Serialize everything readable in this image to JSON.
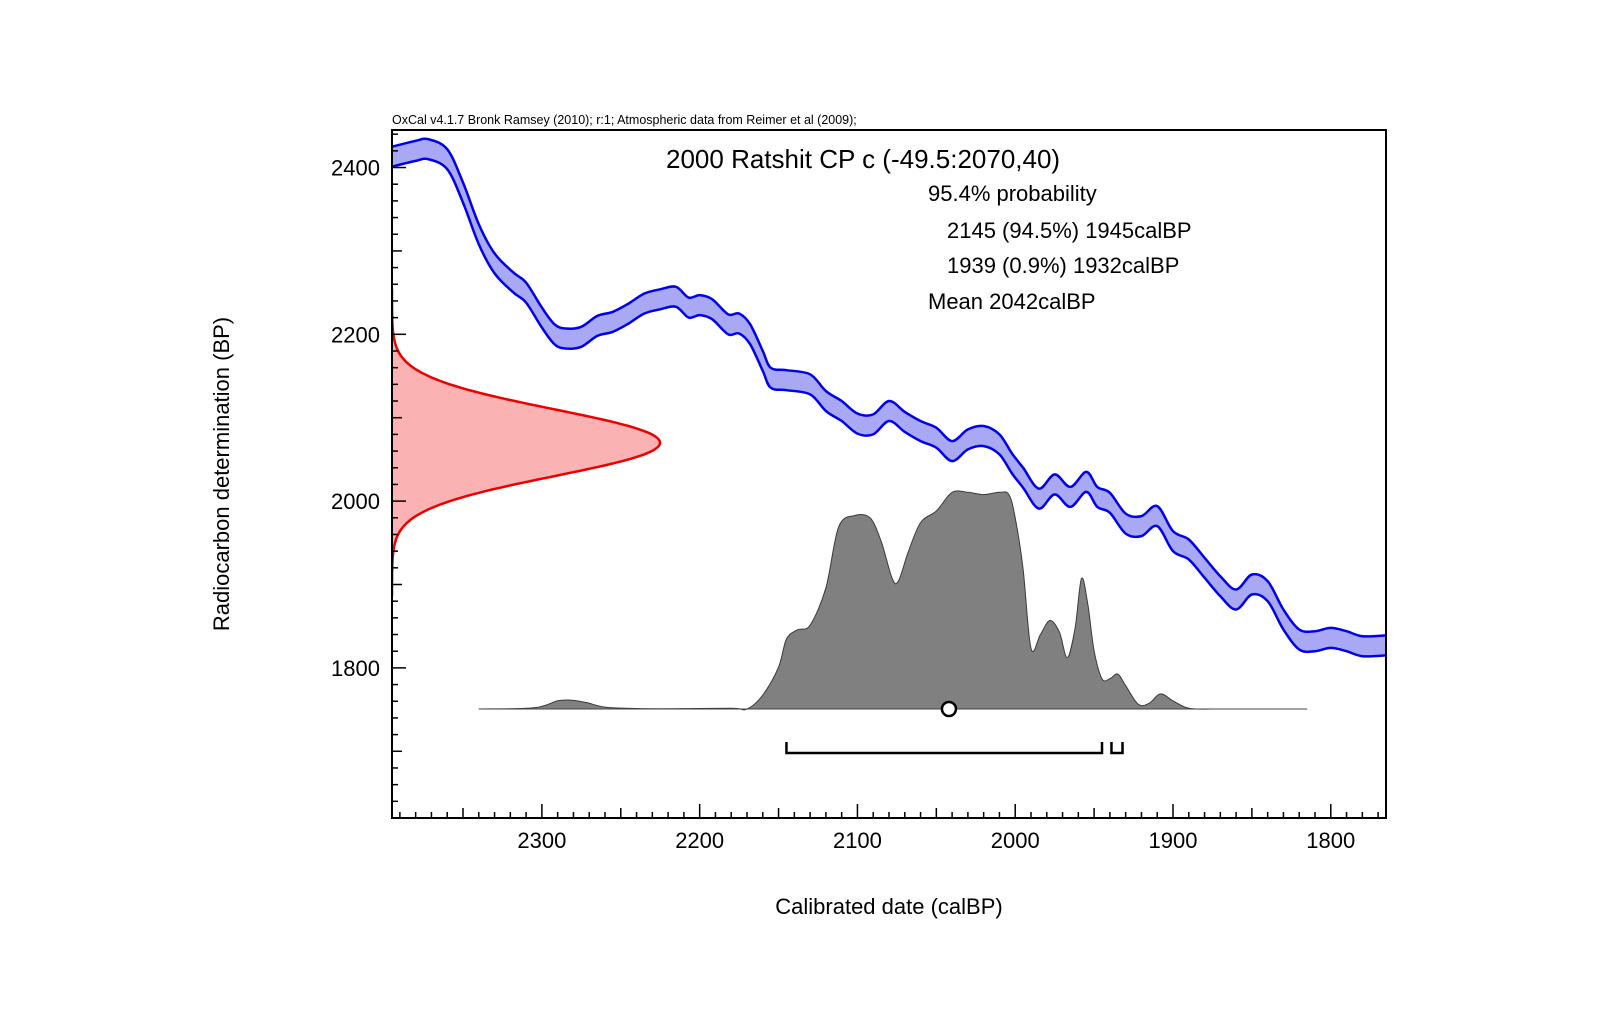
{
  "chart_data": {
    "type": "area",
    "credit": "OxCal v4.1.7 Bronk Ramsey (2010); r:1; Atmospheric data from Reimer et al (2009);",
    "title": "2000 Ratshit CP c (-49.5:2070,40)",
    "probability_heading": "95.4% probability",
    "ranges": [
      {
        "label": "2145 (94.5%) 1945calBP",
        "from": 2145,
        "to": 1945
      },
      {
        "label": "1939 (0.9%) 1932calBP",
        "from": 1939,
        "to": 1932
      }
    ],
    "mean_label": "Mean 2042calBP",
    "mean": 2042,
    "xlabel": "Calibrated date (calBP)",
    "ylabel": "Radiocarbon determination (BP)",
    "xlim": [
      2395,
      1765
    ],
    "ylim": [
      1620,
      2445
    ],
    "x_ticks": [
      2300,
      2200,
      2100,
      2000,
      1900,
      1800
    ],
    "y_ticks": [
      2400,
      2200,
      2000,
      1800
    ],
    "measurement": {
      "mean": 2070,
      "sigma": 40
    },
    "calibration_curve": {
      "x": [
        2395,
        2380,
        2372,
        2360,
        2350,
        2340,
        2330,
        2318,
        2310,
        2300,
        2292,
        2285,
        2275,
        2265,
        2255,
        2245,
        2235,
        2225,
        2215,
        2207,
        2200,
        2192,
        2182,
        2175,
        2168,
        2160,
        2155,
        2145,
        2130,
        2120,
        2110,
        2100,
        2090,
        2080,
        2070,
        2060,
        2050,
        2040,
        2030,
        2020,
        2010,
        2002,
        1995,
        1985,
        1975,
        1965,
        1955,
        1948,
        1940,
        1930,
        1920,
        1910,
        1900,
        1890,
        1880,
        1870,
        1860,
        1850,
        1840,
        1830,
        1820,
        1810,
        1800,
        1790,
        1780,
        1765
      ],
      "y": [
        2413,
        2420,
        2422,
        2410,
        2370,
        2320,
        2285,
        2262,
        2250,
        2220,
        2200,
        2195,
        2197,
        2210,
        2215,
        2225,
        2237,
        2242,
        2245,
        2232,
        2235,
        2230,
        2212,
        2213,
        2200,
        2168,
        2148,
        2145,
        2140,
        2120,
        2108,
        2093,
        2092,
        2108,
        2095,
        2084,
        2076,
        2060,
        2074,
        2078,
        2068,
        2045,
        2028,
        2003,
        2020,
        2005,
        2023,
        2005,
        1998,
        1973,
        1970,
        1982,
        1952,
        1942,
        1920,
        1898,
        1882,
        1900,
        1892,
        1858,
        1834,
        1832,
        1836,
        1832,
        1826,
        1827
      ]
    },
    "posterior_density": {
      "x": [
        2340,
        2305,
        2290,
        2282,
        2272,
        2260,
        2240,
        2220,
        2180,
        2170,
        2160,
        2150,
        2145,
        2138,
        2130,
        2120,
        2112,
        2102,
        2092,
        2085,
        2078,
        2074,
        2068,
        2060,
        2050,
        2040,
        2030,
        2020,
        2010,
        2004,
        2000,
        1995,
        1990,
        1984,
        1978,
        1972,
        1967,
        1962,
        1958,
        1954,
        1950,
        1945,
        1940,
        1935,
        1930,
        1922,
        1915,
        1908,
        1900,
        1890,
        1875,
        1860,
        1815
      ],
      "y": [
        0,
        0.005,
        0.035,
        0.038,
        0.028,
        0.008,
        0.002,
        0.001,
        0.003,
        0,
        0.06,
        0.18,
        0.3,
        0.34,
        0.36,
        0.52,
        0.78,
        0.83,
        0.82,
        0.72,
        0.56,
        0.55,
        0.67,
        0.8,
        0.85,
        0.93,
        0.93,
        0.92,
        0.93,
        0.92,
        0.82,
        0.6,
        0.26,
        0.32,
        0.38,
        0.33,
        0.22,
        0.35,
        0.56,
        0.45,
        0.25,
        0.13,
        0.13,
        0.15,
        0.1,
        0.02,
        0.025,
        0.065,
        0.035,
        0.003,
        0,
        0,
        0
      ]
    }
  },
  "colors": {
    "curve_fill": "#a8a8f5",
    "curve_line": "#0000ee",
    "measurement_fill": "#fbb2b2",
    "measurement_line": "#ee0000",
    "posterior_fill": "#808080",
    "posterior_line": "#3a3a3a"
  }
}
